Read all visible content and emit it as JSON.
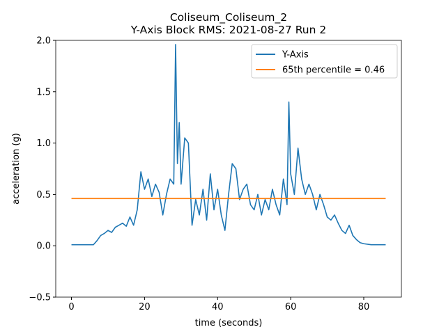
{
  "chart_data": {
    "type": "line",
    "title": "Coliseum_Coliseum_2\nY-Axis Block RMS: 2021-08-27 Run 2",
    "xlabel": "time (seconds)",
    "ylabel": "acceleration (g)",
    "xlim": [
      -4.3,
      90.3
    ],
    "ylim": [
      -0.5,
      2.0
    ],
    "xticks": [
      0,
      20,
      40,
      60,
      80
    ],
    "yticks": [
      {
        "value": -0.5,
        "label": "−0.5"
      },
      {
        "value": 0,
        "label": "0.0"
      },
      0.5,
      {
        "value": 1,
        "label": "1.0"
      },
      1.5,
      {
        "value": 2,
        "label": "2.0"
      }
    ],
    "legend": "upper right",
    "series": [
      {
        "name": "Y-Axis",
        "color": "#1f77b4",
        "x": [
          0,
          6,
          7,
          8,
          9,
          10,
          11,
          12,
          13,
          14,
          15,
          16,
          17,
          18,
          19,
          20,
          21,
          22,
          23,
          24,
          25,
          26,
          27,
          28,
          28.5,
          29,
          29.5,
          30,
          31,
          32,
          33,
          34,
          35,
          36,
          37,
          38,
          39,
          40,
          41,
          42,
          43,
          44,
          45,
          46,
          47,
          48,
          49,
          50,
          51,
          52,
          53,
          54,
          55,
          56,
          57,
          58,
          59,
          59.5,
          60,
          61,
          62,
          63,
          64,
          65,
          66,
          67,
          68,
          69,
          70,
          71,
          72,
          73,
          74,
          75,
          76,
          77,
          78,
          79,
          80,
          82,
          86
        ],
        "values": [
          0.01,
          0.01,
          0.05,
          0.1,
          0.12,
          0.15,
          0.13,
          0.18,
          0.2,
          0.22,
          0.19,
          0.28,
          0.2,
          0.35,
          0.72,
          0.55,
          0.65,
          0.48,
          0.6,
          0.52,
          0.3,
          0.5,
          0.65,
          0.6,
          1.96,
          0.8,
          1.2,
          0.6,
          1.05,
          1.0,
          0.2,
          0.45,
          0.3,
          0.55,
          0.25,
          0.7,
          0.35,
          0.55,
          0.3,
          0.15,
          0.5,
          0.8,
          0.75,
          0.45,
          0.55,
          0.6,
          0.4,
          0.35,
          0.5,
          0.3,
          0.45,
          0.35,
          0.55,
          0.4,
          0.3,
          0.65,
          0.4,
          1.4,
          0.7,
          0.5,
          0.95,
          0.65,
          0.5,
          0.6,
          0.5,
          0.35,
          0.5,
          0.4,
          0.28,
          0.25,
          0.3,
          0.22,
          0.15,
          0.12,
          0.2,
          0.1,
          0.06,
          0.03,
          0.02,
          0.01,
          0.01
        ]
      },
      {
        "name": "65th percentile = 0.46",
        "color": "#ff7f0e",
        "x": [
          0,
          86
        ],
        "values": [
          0.46,
          0.46
        ]
      }
    ]
  }
}
